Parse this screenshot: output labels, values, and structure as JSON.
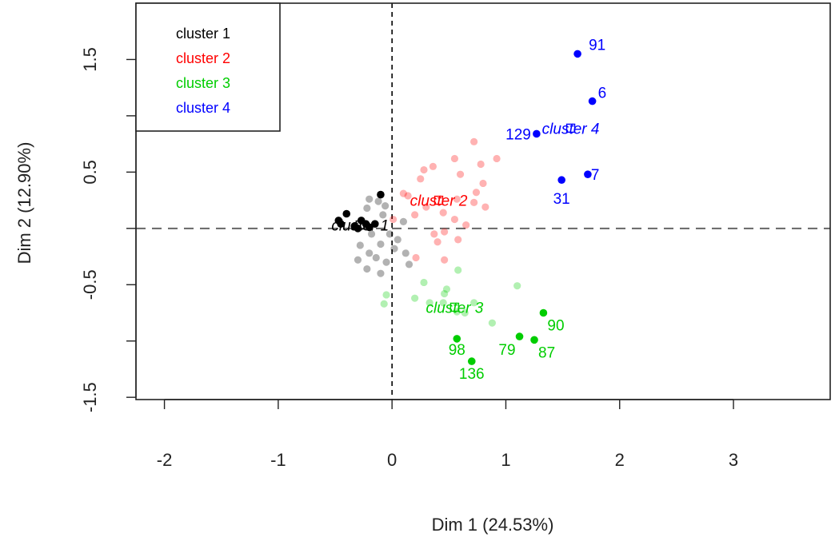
{
  "chart_data": {
    "type": "scatter",
    "xlabel": "Dim 1 (24.53%)",
    "ylabel": "Dim 2 (12.90%)",
    "xlim": [
      -2.25,
      3.85
    ],
    "ylim": [
      -1.52,
      2.0
    ],
    "xticks": [
      -2,
      -1,
      0,
      1,
      2,
      3
    ],
    "yticks": [
      -1.5,
      -0.5,
      0.5,
      1.5
    ],
    "yticks_minor": [
      -1,
      0,
      1
    ],
    "reference_lines": {
      "x": 0,
      "y": 0
    },
    "legend": {
      "position": "top-left",
      "entries": [
        {
          "label": "cluster 1",
          "color": "#000000"
        },
        {
          "label": "cluster 2",
          "color": "#ff0000"
        },
        {
          "label": "cluster 3",
          "color": "#00cd00"
        },
        {
          "label": "cluster 4",
          "color": "#0000ff"
        }
      ]
    },
    "series": [
      {
        "name": "cluster 1",
        "color": "#000000",
        "center": {
          "x": -0.28,
          "y": 0.03,
          "label": "cluster 1"
        },
        "points": [
          [
            -0.47,
            0.07
          ],
          [
            -0.4,
            0.13
          ],
          [
            -0.33,
            0.02
          ],
          [
            -0.27,
            0.07
          ],
          [
            -0.23,
            0.04
          ],
          [
            -0.15,
            0.04
          ],
          [
            -0.1,
            0.3
          ],
          [
            -0.45,
            0.04
          ],
          [
            -0.3,
            0.0
          ],
          [
            -0.2,
            0.01
          ]
        ],
        "faded_points": [
          [
            -0.2,
            0.26
          ],
          [
            -0.12,
            0.24
          ],
          [
            -0.06,
            0.2
          ],
          [
            -0.22,
            0.18
          ],
          [
            -0.08,
            0.12
          ],
          [
            0.1,
            0.06
          ],
          [
            -0.28,
            -0.15
          ],
          [
            -0.2,
            -0.22
          ],
          [
            -0.14,
            -0.26
          ],
          [
            -0.1,
            -0.14
          ],
          [
            -0.02,
            -0.05
          ],
          [
            0.05,
            -0.1
          ],
          [
            -0.22,
            -0.36
          ],
          [
            -0.1,
            -0.4
          ],
          [
            -0.3,
            -0.28
          ],
          [
            0.02,
            -0.18
          ],
          [
            0.12,
            -0.22
          ],
          [
            0.15,
            -0.32
          ],
          [
            -0.18,
            -0.05
          ],
          [
            -0.05,
            -0.3
          ]
        ]
      },
      {
        "name": "cluster 2",
        "color": "#ff0000",
        "center": {
          "x": 0.41,
          "y": 0.25,
          "label": "cluster 2"
        },
        "points": [],
        "faded_points": [
          [
            0.28,
            0.52
          ],
          [
            0.36,
            0.55
          ],
          [
            0.25,
            0.44
          ],
          [
            0.55,
            0.62
          ],
          [
            0.72,
            0.77
          ],
          [
            0.78,
            0.57
          ],
          [
            0.92,
            0.62
          ],
          [
            0.6,
            0.48
          ],
          [
            0.8,
            0.4
          ],
          [
            0.74,
            0.32
          ],
          [
            0.57,
            0.26
          ],
          [
            0.72,
            0.23
          ],
          [
            0.82,
            0.19
          ],
          [
            0.3,
            0.19
          ],
          [
            0.2,
            0.12
          ],
          [
            0.45,
            0.14
          ],
          [
            0.55,
            0.08
          ],
          [
            0.65,
            0.03
          ],
          [
            0.46,
            -0.03
          ],
          [
            0.4,
            -0.12
          ],
          [
            0.58,
            -0.1
          ],
          [
            0.46,
            -0.28
          ],
          [
            0.21,
            -0.26
          ],
          [
            0.37,
            -0.05
          ],
          [
            0.01,
            0.08
          ],
          [
            0.1,
            0.31
          ],
          [
            0.14,
            0.29
          ]
        ]
      },
      {
        "name": "cluster 3",
        "color": "#00cd00",
        "center": {
          "x": 0.55,
          "y": -0.7,
          "label": "cluster 3"
        },
        "points": [
          {
            "x": 0.57,
            "y": -0.98,
            "label": "98"
          },
          {
            "x": 0.7,
            "y": -1.18,
            "label": "136"
          },
          {
            "x": 1.12,
            "y": -0.96,
            "label": "79"
          },
          {
            "x": 1.25,
            "y": -0.99,
            "label": "87"
          },
          {
            "x": 1.33,
            "y": -0.75,
            "label": "90"
          }
        ],
        "faded_points": [
          [
            0.2,
            -0.62
          ],
          [
            0.33,
            -0.66
          ],
          [
            0.46,
            -0.58
          ],
          [
            0.48,
            -0.54
          ],
          [
            0.45,
            -0.66
          ],
          [
            0.57,
            -0.74
          ],
          [
            0.64,
            -0.75
          ],
          [
            0.72,
            -0.66
          ],
          [
            0.88,
            -0.84
          ],
          [
            0.58,
            -0.37
          ],
          [
            -0.05,
            -0.59
          ],
          [
            -0.07,
            -0.67
          ],
          [
            0.28,
            -0.48
          ],
          [
            1.1,
            -0.51
          ]
        ]
      },
      {
        "name": "cluster 4",
        "color": "#0000ff",
        "center": {
          "x": 1.57,
          "y": 0.89,
          "label": "cluster 4"
        },
        "points": [
          {
            "x": 1.63,
            "y": 1.55,
            "label": "91"
          },
          {
            "x": 1.76,
            "y": 1.13,
            "label": "6"
          },
          {
            "x": 1.27,
            "y": 0.84,
            "label": "129"
          },
          {
            "x": 1.72,
            "y": 0.48,
            "label": "7"
          },
          {
            "x": 1.49,
            "y": 0.43,
            "label": "31"
          }
        ],
        "faded_points": []
      }
    ]
  }
}
